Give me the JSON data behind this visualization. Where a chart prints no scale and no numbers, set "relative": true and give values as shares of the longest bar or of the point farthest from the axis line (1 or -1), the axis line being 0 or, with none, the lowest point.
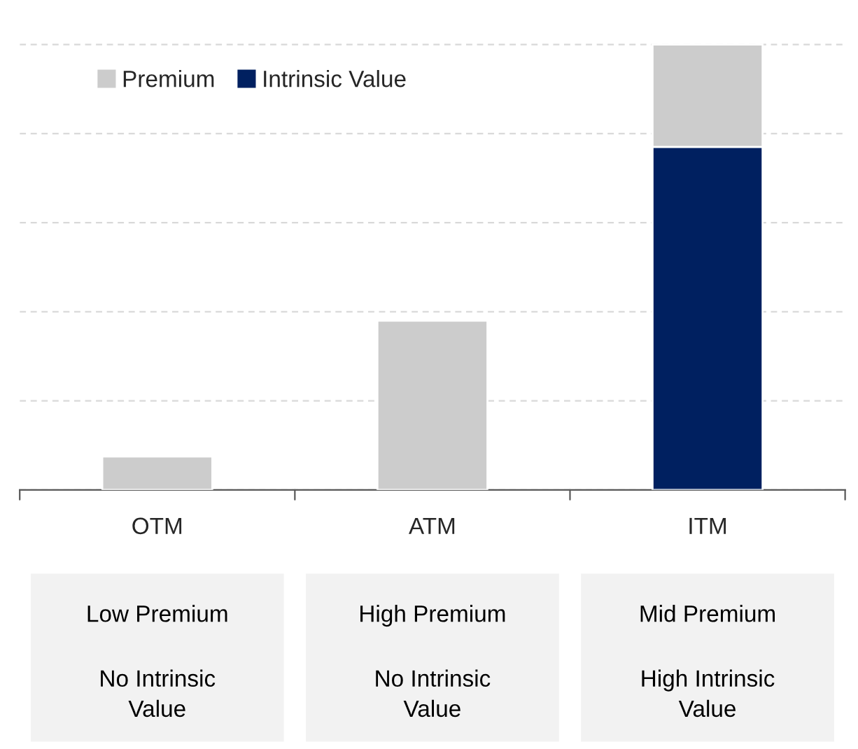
{
  "chart_data": {
    "type": "bar",
    "relative": true,
    "stacked": true,
    "categories": [
      "OTM",
      "ATM",
      "ITM"
    ],
    "series": [
      {
        "name": "Intrinsic Value",
        "color": "#002060",
        "values": [
          0,
          0,
          0.77
        ]
      },
      {
        "name": "Premium",
        "color": "#cccccc",
        "values": [
          0.075,
          0.38,
          0.23
        ]
      }
    ],
    "grid": "y",
    "legend": "top left",
    "tick_labels": "x",
    "annotations": [
      "Low Premium",
      "No Intrinsic\nValue",
      "High Premium",
      "No Intrinsic\nValue",
      "Mid Premium",
      "High Intrinsic\nValue"
    ]
  }
}
